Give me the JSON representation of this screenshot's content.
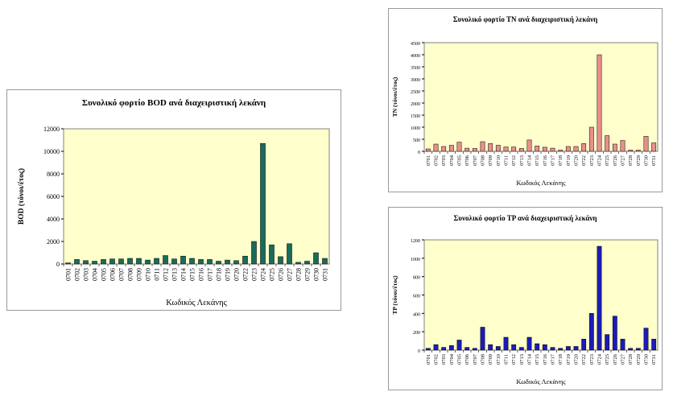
{
  "colors": {
    "plot_bg": "#ffffcc",
    "bod": "#1a6b5c",
    "tn": "#e8908c",
    "tp": "#1c1cb8"
  },
  "chart_data": [
    {
      "id": "bod",
      "type": "bar",
      "title": "Συνολικό φορτίο BOD ανά διαχειριστική λεκάνη",
      "xlabel": "Κωδικός Λεκάνης",
      "ylabel": "BOD (τόνοι/έτος)",
      "ylim": [
        0,
        12000
      ],
      "yticks": [
        "0",
        "2000",
        "4000",
        "6000",
        "8000",
        "10000",
        "12000"
      ],
      "grid": false,
      "categories": [
        "0701",
        "0702",
        "0703",
        "0704",
        "0705",
        "0706",
        "0707",
        "0708",
        "0709",
        "0710",
        "0711",
        "0712",
        "0713",
        "0714",
        "0715",
        "0716",
        "0717",
        "0718",
        "0719",
        "0720",
        "0722",
        "0723",
        "0724",
        "0725",
        "0726",
        "0727",
        "0728",
        "0729",
        "0730",
        "0731"
      ],
      "values": [
        100,
        400,
        300,
        250,
        400,
        450,
        450,
        500,
        500,
        350,
        500,
        750,
        450,
        700,
        500,
        400,
        400,
        250,
        350,
        300,
        700,
        2000,
        10700,
        1700,
        650,
        1800,
        150,
        250,
        1000,
        500
      ]
    },
    {
      "id": "tn",
      "type": "bar",
      "title": "Συνολικό φορτίο ΤΝ ανά διαχειριστική λεκάνη",
      "xlabel": "Κωδικός Λεκάνης",
      "ylabel": "TN (τόνοι/έτος)",
      "ylim": [
        0,
        4500
      ],
      "yticks": [
        "0",
        "500",
        "1000",
        "1500",
        "2000",
        "2500",
        "3000",
        "3500",
        "4000",
        "4500"
      ],
      "grid": false,
      "categories": [
        "0701",
        "0702",
        "0703",
        "0704",
        "0705",
        "0706",
        "0707",
        "0708",
        "0709",
        "0710",
        "0711",
        "0712",
        "0713",
        "0714",
        "0715",
        "0716",
        "0717",
        "0718",
        "0719",
        "0720",
        "0722",
        "0723",
        "0724",
        "0725",
        "0726",
        "0727",
        "0728",
        "0729",
        "0730",
        "0731"
      ],
      "values": [
        100,
        300,
        200,
        250,
        380,
        130,
        120,
        400,
        320,
        250,
        180,
        180,
        120,
        470,
        220,
        170,
        130,
        50,
        200,
        200,
        320,
        1000,
        4000,
        650,
        300,
        450,
        50,
        50,
        620,
        350
      ]
    },
    {
      "id": "tp",
      "type": "bar",
      "title": "Συνολικό φορτίο ΤΡ ανά διαχειριστική λεκάνη",
      "xlabel": "Κωδικός Λεκάνης",
      "ylabel": "TP (τόνοι/έτος)",
      "ylim": [
        0,
        1200
      ],
      "yticks": [
        "0",
        "200",
        "400",
        "600",
        "800",
        "1000",
        "1200"
      ],
      "grid": false,
      "categories": [
        "0701",
        "0702",
        "0703",
        "0704",
        "0705",
        "0706",
        "0707",
        "0708",
        "0709",
        "0710",
        "0711",
        "0712",
        "0713",
        "0714",
        "0715",
        "0716",
        "0717",
        "0718",
        "0719",
        "0720",
        "0722",
        "0723",
        "0724",
        "0725",
        "0726",
        "0727",
        "0728",
        "0729",
        "0730",
        "0731"
      ],
      "values": [
        20,
        60,
        30,
        50,
        110,
        30,
        20,
        250,
        60,
        40,
        140,
        60,
        30,
        140,
        70,
        60,
        30,
        20,
        40,
        40,
        120,
        400,
        1130,
        170,
        370,
        120,
        20,
        20,
        240,
        120
      ]
    }
  ]
}
